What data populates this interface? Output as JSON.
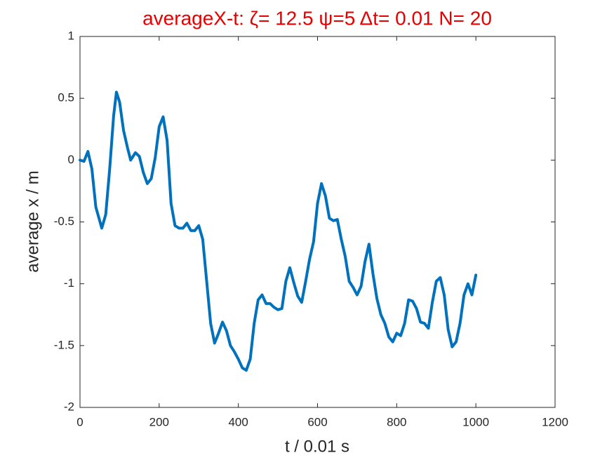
{
  "chart_data": {
    "type": "line",
    "title": "averageX-t:  ζ= 12.5 ψ=5 Δt= 0.01 N= 20",
    "xlabel": "t / 0.01 s",
    "ylabel": "average x / m",
    "x": [
      0,
      10,
      20,
      30,
      40,
      55,
      65,
      75,
      85,
      92,
      100,
      110,
      120,
      128,
      140,
      150,
      160,
      170,
      180,
      190,
      200,
      210,
      220,
      230,
      240,
      250,
      260,
      270,
      280,
      290,
      300,
      310,
      320,
      330,
      340,
      350,
      360,
      370,
      380,
      390,
      400,
      410,
      420,
      430,
      440,
      450,
      460,
      470,
      480,
      490,
      500,
      510,
      520,
      530,
      540,
      550,
      560,
      570,
      580,
      590,
      600,
      610,
      620,
      630,
      640,
      650,
      660,
      670,
      680,
      690,
      700,
      710,
      720,
      730,
      740,
      750,
      760,
      770,
      780,
      790,
      800,
      810,
      820,
      830,
      840,
      850,
      860,
      870,
      880,
      890,
      900,
      910,
      920,
      930,
      940,
      950,
      960,
      970,
      980,
      990,
      1000
    ],
    "series": [
      {
        "name": "average x",
        "color": "#0072bd",
        "values": [
          0,
          -0.01,
          0.07,
          -0.07,
          -0.38,
          -0.55,
          -0.44,
          -0.07,
          0.36,
          0.55,
          0.47,
          0.24,
          0.1,
          0,
          0.06,
          0.03,
          -0.1,
          -0.19,
          -0.15,
          0.02,
          0.27,
          0.35,
          0.16,
          -0.35,
          -0.53,
          -0.55,
          -0.55,
          -0.51,
          -0.57,
          -0.57,
          -0.53,
          -0.64,
          -0.98,
          -1.32,
          -1.48,
          -1.4,
          -1.31,
          -1.38,
          -1.5,
          -1.55,
          -1.61,
          -1.68,
          -1.7,
          -1.61,
          -1.32,
          -1.13,
          -1.09,
          -1.16,
          -1.16,
          -1.19,
          -1.21,
          -1.2,
          -0.98,
          -0.87,
          -0.99,
          -1.1,
          -1.15,
          -0.98,
          -0.8,
          -0.66,
          -0.35,
          -0.19,
          -0.29,
          -0.47,
          -0.49,
          -0.48,
          -0.64,
          -0.78,
          -0.98,
          -1.03,
          -1.09,
          -1.02,
          -0.82,
          -0.68,
          -0.92,
          -1.12,
          -1.25,
          -1.32,
          -1.43,
          -1.47,
          -1.4,
          -1.42,
          -1.32,
          -1.13,
          -1.14,
          -1.2,
          -1.31,
          -1.32,
          -1.36,
          -1.15,
          -0.98,
          -0.95,
          -1.09,
          -1.37,
          -1.51,
          -1.47,
          -1.32,
          -1.09,
          -1.0,
          -1.09,
          -0.93
        ]
      }
    ],
    "xlim": [
      0,
      1200
    ],
    "xticks": [
      0,
      200,
      400,
      600,
      800,
      1000,
      1200
    ],
    "ylim": [
      -2,
      1
    ],
    "yticks": [
      -2,
      -1.5,
      -1,
      -0.5,
      0,
      0.5,
      1
    ],
    "grid": false
  }
}
